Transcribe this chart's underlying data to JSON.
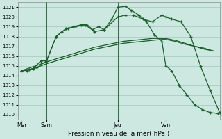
{
  "background_color": "#cce8e0",
  "grid_color": "#a0c8bc",
  "line_color": "#1a5c2a",
  "title": "Pression niveau de la mer( hPa )",
  "ylim": [
    1009.5,
    1021.5
  ],
  "yticks": [
    1010,
    1011,
    1012,
    1013,
    1014,
    1015,
    1016,
    1017,
    1018,
    1019,
    1020,
    1021
  ],
  "xlim": [
    0,
    10.5
  ],
  "xtick_labels": [
    "Mer",
    "Sam",
    "Jeu",
    "Ven"
  ],
  "xtick_positions": [
    0.2,
    1.5,
    5.2,
    7.7
  ],
  "vlines_x": [
    0.2,
    1.5,
    5.2,
    7.7
  ],
  "line1_x": [
    0.2,
    0.5,
    0.8,
    1.1,
    1.5,
    2.0,
    2.5,
    3.0,
    3.5,
    4.0,
    4.5,
    5.0,
    5.5,
    6.0,
    6.5,
    7.0,
    7.5,
    7.7,
    8.2,
    8.7,
    9.2,
    9.7,
    10.2
  ],
  "line1_y": [
    1014.5,
    1014.6,
    1014.7,
    1014.9,
    1015.2,
    1015.5,
    1015.8,
    1016.1,
    1016.4,
    1016.7,
    1016.9,
    1017.1,
    1017.3,
    1017.4,
    1017.5,
    1017.6,
    1017.7,
    1017.7,
    1017.5,
    1017.2,
    1017.0,
    1016.7,
    1016.5
  ],
  "line2_x": [
    0.2,
    0.5,
    0.8,
    1.1,
    1.5,
    2.0,
    2.5,
    3.0,
    3.5,
    4.0,
    4.5,
    5.0,
    5.5,
    6.0,
    6.5,
    7.0,
    7.5,
    7.7,
    8.2,
    8.7,
    9.2,
    9.7,
    10.2
  ],
  "line2_y": [
    1014.5,
    1014.7,
    1014.9,
    1015.1,
    1015.4,
    1015.7,
    1016.0,
    1016.3,
    1016.6,
    1016.9,
    1017.1,
    1017.3,
    1017.5,
    1017.6,
    1017.7,
    1017.8,
    1017.8,
    1017.8,
    1017.6,
    1017.3,
    1017.0,
    1016.8,
    1016.5
  ],
  "line3_x": [
    0.2,
    0.6,
    1.0,
    1.5,
    2.0,
    2.5,
    3.0,
    3.5,
    4.0,
    4.5,
    5.2,
    5.6,
    6.0,
    6.5,
    7.0,
    7.5,
    7.7,
    8.0,
    8.5,
    9.0,
    9.5,
    10.0,
    10.5
  ],
  "line3_y": [
    1014.5,
    1014.6,
    1014.8,
    1015.5,
    1018.0,
    1018.8,
    1019.0,
    1019.2,
    1018.5,
    1018.7,
    1020.0,
    1020.2,
    1020.2,
    1019.8,
    1019.5,
    1020.2,
    1020.0,
    1019.8,
    1019.5,
    1018.0,
    1015.0,
    1012.5,
    1010.2
  ],
  "line4_x": [
    0.2,
    0.5,
    0.8,
    1.2,
    1.5,
    2.0,
    2.3,
    2.6,
    2.9,
    3.3,
    3.6,
    3.9,
    4.2,
    4.5,
    4.9,
    5.2,
    5.6,
    5.9,
    6.3,
    6.7,
    7.1,
    7.5,
    7.7,
    8.0,
    8.4,
    8.8,
    9.2,
    9.6,
    10.0,
    10.4
  ],
  "line4_y": [
    1014.5,
    1014.5,
    1014.7,
    1015.5,
    1015.5,
    1018.0,
    1018.5,
    1018.8,
    1019.0,
    1019.2,
    1019.2,
    1018.7,
    1019.0,
    1018.7,
    1019.8,
    1021.0,
    1021.1,
    1020.7,
    1020.2,
    1019.5,
    1018.2,
    1017.5,
    1015.0,
    1014.5,
    1013.0,
    1012.0,
    1011.0,
    1010.5,
    1010.2,
    1010.1
  ],
  "marker_size": 2.5,
  "linewidth": 0.9
}
